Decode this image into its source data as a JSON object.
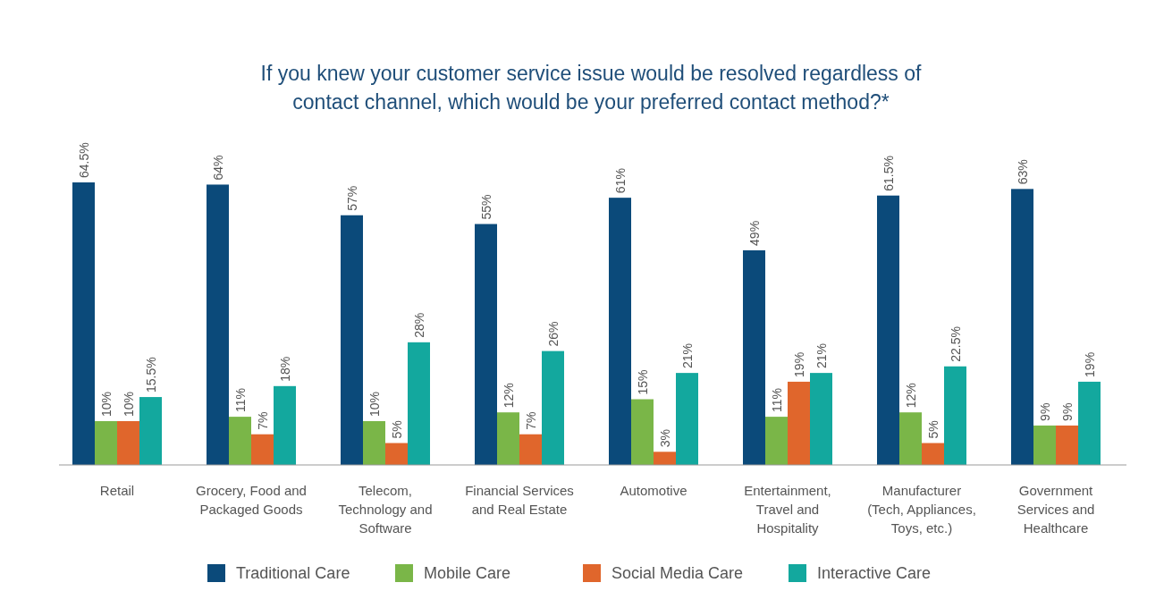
{
  "chart_data": {
    "type": "bar",
    "title": "If you knew your customer service issue would be resolved regardless of contact channel, which would be your preferred contact method?*",
    "categories": [
      "Retail",
      "Grocery, Food and Packaged Goods",
      "Telecom, Technology and Software",
      "Financial Services and Real Estate",
      "Automotive",
      "Entertainment, Travel and Hospitality",
      "Manufacturer (Tech, Appliances, Toys, etc.)",
      "Government Services and Healthcare"
    ],
    "series": [
      {
        "name": "Traditional Care",
        "color": "#0b4a7a",
        "values": [
          64.5,
          64,
          57,
          55,
          61,
          49,
          61.5,
          63
        ],
        "value_labels": [
          "64.5%",
          "64%",
          "57%",
          "55%",
          "61%",
          "49%",
          "61.5%",
          "63%"
        ]
      },
      {
        "name": "Mobile Care",
        "color": "#7ab648",
        "values": [
          10,
          11,
          10,
          12,
          15,
          11,
          12,
          9
        ],
        "value_labels": [
          "10%",
          "11%",
          "10%",
          "12%",
          "15%",
          "11%",
          "12%",
          "9%"
        ]
      },
      {
        "name": "Social Media Care",
        "color": "#e0662c",
        "values": [
          10,
          7,
          5,
          7,
          3,
          19,
          5,
          9
        ],
        "value_labels": [
          "10%",
          "7%",
          "5%",
          "7%",
          "3%",
          "19%",
          "5%",
          "9%"
        ]
      },
      {
        "name": "Interactive Care",
        "color": "#13a89e",
        "values": [
          15.5,
          18,
          28,
          26,
          21,
          21,
          22.5,
          19
        ],
        "value_labels": [
          "15.5%",
          "18%",
          "28%",
          "26%",
          "21%",
          "21%",
          "22.5%",
          "19%"
        ]
      }
    ],
    "legend": "bottom"
  }
}
